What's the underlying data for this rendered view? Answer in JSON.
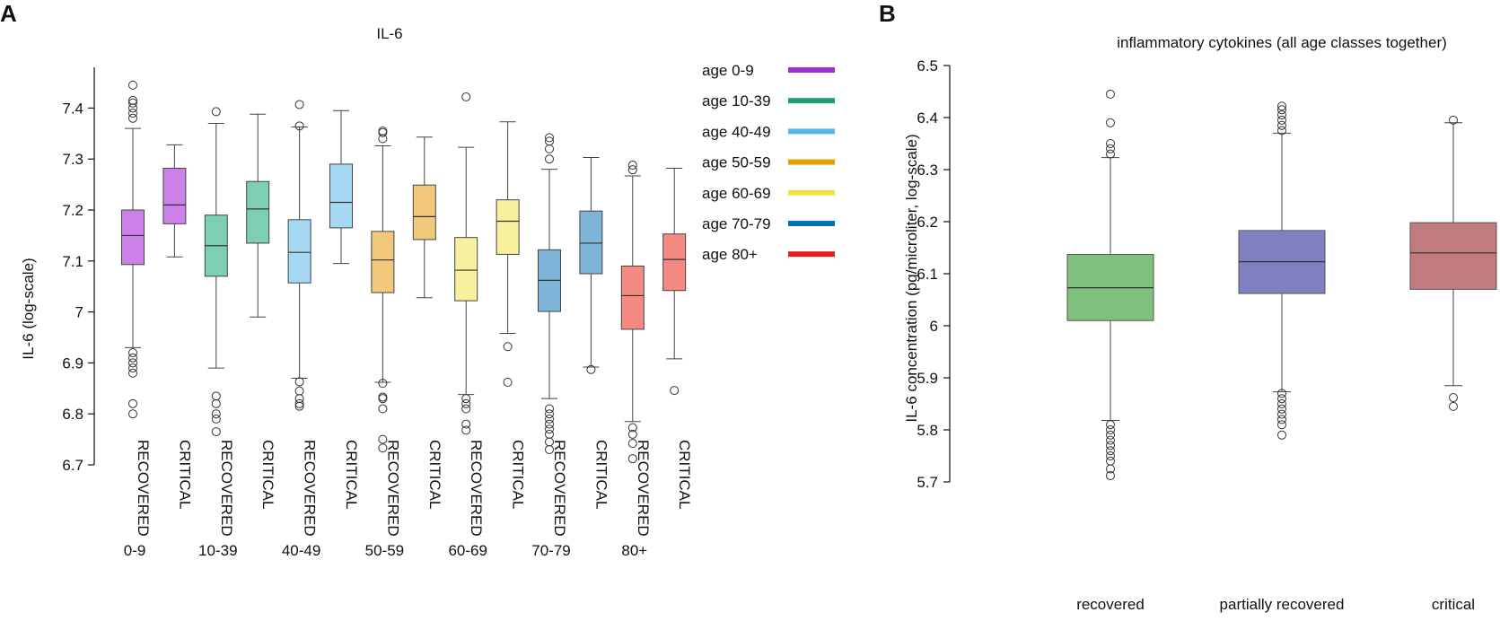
{
  "panel_a_letter": "A",
  "panel_b_letter": "B",
  "colors": {
    "age 0-9": "#9b30d9",
    "age 10-39": "#1a9e74",
    "age 40-49": "#56b4e9",
    "age 50-59": "#e69f00",
    "age 60-69": "#f0e442",
    "age 70-79": "#0072b2",
    "age 80+": "#e22020"
  },
  "box_fill_colors": {
    "age 0-9": "#cc80ea",
    "age 10-39": "#7ecdb5",
    "age 40-49": "#a6d8f3",
    "age 50-59": "#f2c87a",
    "age 60-69": "#f8f09c",
    "age 70-79": "#7db4d8",
    "age 80+": "#f48a82",
    "recovered": "#7fc07d",
    "partially recovered": "#8080c0",
    "critical": "#c07b7e"
  },
  "chart_data": [
    {
      "type": "box",
      "title": "IL-6",
      "xlabel": "",
      "ylabel": "IL-6 (log-scale)",
      "ylim": [
        6.7,
        7.48
      ],
      "yticks": [
        "6.7",
        "6.8",
        "6.9",
        "7",
        "7.1",
        "7.2",
        "7.3",
        "7.4"
      ],
      "groups": [
        "0-9",
        "10-39",
        "40-49",
        "50-59",
        "60-69",
        "70-79",
        "80+"
      ],
      "categories": [
        "RECOVERED",
        "CRITICAL"
      ],
      "legend": {
        "position": "right",
        "entries": [
          "age 0-9",
          "age 10-39",
          "age 40-49",
          "age 50-59",
          "age 60-69",
          "age 70-79",
          "age 80+"
        ]
      },
      "boxes": [
        {
          "group": "0-9",
          "category": "RECOVERED",
          "color_key": "age 0-9",
          "whisker_low": 6.93,
          "q1": 7.093,
          "median": 7.15,
          "q3": 7.2,
          "whisker_high": 7.36,
          "outliers": [
            6.8,
            6.82,
            6.88,
            6.89,
            6.9,
            6.91,
            6.92,
            7.38,
            7.39,
            7.4,
            7.41,
            7.415,
            7.445
          ]
        },
        {
          "group": "0-9",
          "category": "CRITICAL",
          "color_key": "age 0-9",
          "whisker_low": 7.108,
          "q1": 7.173,
          "median": 7.21,
          "q3": 7.282,
          "whisker_high": 7.328,
          "outliers": []
        },
        {
          "group": "10-39",
          "category": "RECOVERED",
          "color_key": "age 10-39",
          "whisker_low": 6.89,
          "q1": 7.07,
          "median": 7.13,
          "q3": 7.19,
          "whisker_high": 7.37,
          "outliers": [
            6.765,
            6.79,
            6.8,
            6.82,
            6.835,
            7.393
          ]
        },
        {
          "group": "10-39",
          "category": "CRITICAL",
          "color_key": "age 10-39",
          "whisker_low": 6.99,
          "q1": 7.135,
          "median": 7.202,
          "q3": 7.256,
          "whisker_high": 7.388,
          "outliers": []
        },
        {
          "group": "40-49",
          "category": "RECOVERED",
          "color_key": "age 40-49",
          "whisker_low": 6.87,
          "q1": 7.057,
          "median": 7.117,
          "q3": 7.181,
          "whisker_high": 7.363,
          "outliers": [
            6.815,
            6.82,
            6.83,
            6.845,
            6.863,
            7.365,
            7.407
          ]
        },
        {
          "group": "40-49",
          "category": "CRITICAL",
          "color_key": "age 40-49",
          "whisker_low": 7.095,
          "q1": 7.165,
          "median": 7.215,
          "q3": 7.29,
          "whisker_high": 7.395,
          "outliers": []
        },
        {
          "group": "50-59",
          "category": "RECOVERED",
          "color_key": "age 50-59",
          "whisker_low": 6.862,
          "q1": 7.038,
          "median": 7.102,
          "q3": 7.158,
          "whisker_high": 7.326,
          "outliers": [
            6.733,
            6.75,
            6.81,
            6.83,
            6.833,
            6.86,
            7.34,
            7.352,
            7.355
          ]
        },
        {
          "group": "50-59",
          "category": "CRITICAL",
          "color_key": "age 50-59",
          "whisker_low": 7.028,
          "q1": 7.142,
          "median": 7.187,
          "q3": 7.249,
          "whisker_high": 7.343,
          "outliers": []
        },
        {
          "group": "60-69",
          "category": "RECOVERED",
          "color_key": "age 60-69",
          "whisker_low": 6.838,
          "q1": 7.022,
          "median": 7.082,
          "q3": 7.146,
          "whisker_high": 7.323,
          "outliers": [
            6.768,
            6.78,
            6.81,
            6.82,
            6.83,
            7.422
          ]
        },
        {
          "group": "60-69",
          "category": "CRITICAL",
          "color_key": "age 60-69",
          "whisker_low": 6.958,
          "q1": 7.113,
          "median": 7.178,
          "q3": 7.22,
          "whisker_high": 7.373,
          "outliers": [
            6.862,
            6.932
          ]
        },
        {
          "group": "70-79",
          "category": "RECOVERED",
          "color_key": "age 70-79",
          "whisker_low": 6.83,
          "q1": 7.001,
          "median": 7.062,
          "q3": 7.122,
          "whisker_high": 7.28,
          "outliers": [
            6.73,
            6.745,
            6.76,
            6.77,
            6.78,
            6.79,
            6.8,
            6.81,
            7.3,
            7.32,
            7.335,
            7.342
          ]
        },
        {
          "group": "70-79",
          "category": "CRITICAL",
          "color_key": "age 70-79",
          "whisker_low": 6.892,
          "q1": 7.075,
          "median": 7.135,
          "q3": 7.198,
          "whisker_high": 7.303,
          "outliers": [
            6.887
          ]
        },
        {
          "group": "80+",
          "category": "RECOVERED",
          "color_key": "age 80+",
          "whisker_low": 6.785,
          "q1": 6.966,
          "median": 7.032,
          "q3": 7.09,
          "whisker_high": 7.267,
          "outliers": [
            6.712,
            6.742,
            6.76,
            6.773,
            7.279,
            7.288
          ]
        },
        {
          "group": "80+",
          "category": "CRITICAL",
          "color_key": "age 80+",
          "whisker_low": 6.908,
          "q1": 7.042,
          "median": 7.103,
          "q3": 7.153,
          "whisker_high": 7.282,
          "outliers": [
            6.846
          ]
        }
      ]
    },
    {
      "type": "box",
      "title": "inflammatory cytokines (all age classes together)",
      "xlabel": "",
      "ylabel": "IL-6 concentration (pg/microliter, log-scale)",
      "ylim": [
        5.7,
        6.5
      ],
      "yticks": [
        "5.7",
        "5.8",
        "5.9",
        "6",
        "6.1",
        "6.2",
        "6.3",
        "6.4",
        "6.5"
      ],
      "categories": [
        "recovered",
        "partially recovered",
        "critical"
      ],
      "boxes": [
        {
          "category": "recovered",
          "color_key": "recovered",
          "whisker_low": 5.818,
          "q1": 6.01,
          "median": 6.073,
          "q3": 6.137,
          "whisker_high": 6.323,
          "outliers": [
            5.712,
            5.725,
            5.74,
            5.75,
            5.76,
            5.77,
            5.78,
            5.79,
            5.8,
            5.81,
            6.33,
            6.34,
            6.35,
            6.39,
            6.445
          ]
        },
        {
          "category": "partially recovered",
          "color_key": "partially recovered",
          "whisker_low": 5.873,
          "q1": 6.062,
          "median": 6.123,
          "q3": 6.183,
          "whisker_high": 6.37,
          "outliers": [
            5.79,
            5.81,
            5.82,
            5.83,
            5.84,
            5.85,
            5.86,
            5.87,
            6.375,
            6.385,
            6.395,
            6.405,
            6.415,
            6.422
          ]
        },
        {
          "category": "critical",
          "color_key": "critical",
          "whisker_low": 5.885,
          "q1": 6.07,
          "median": 6.14,
          "q3": 6.198,
          "whisker_high": 6.39,
          "outliers": [
            5.845,
            5.862,
            6.395
          ]
        }
      ]
    }
  ]
}
